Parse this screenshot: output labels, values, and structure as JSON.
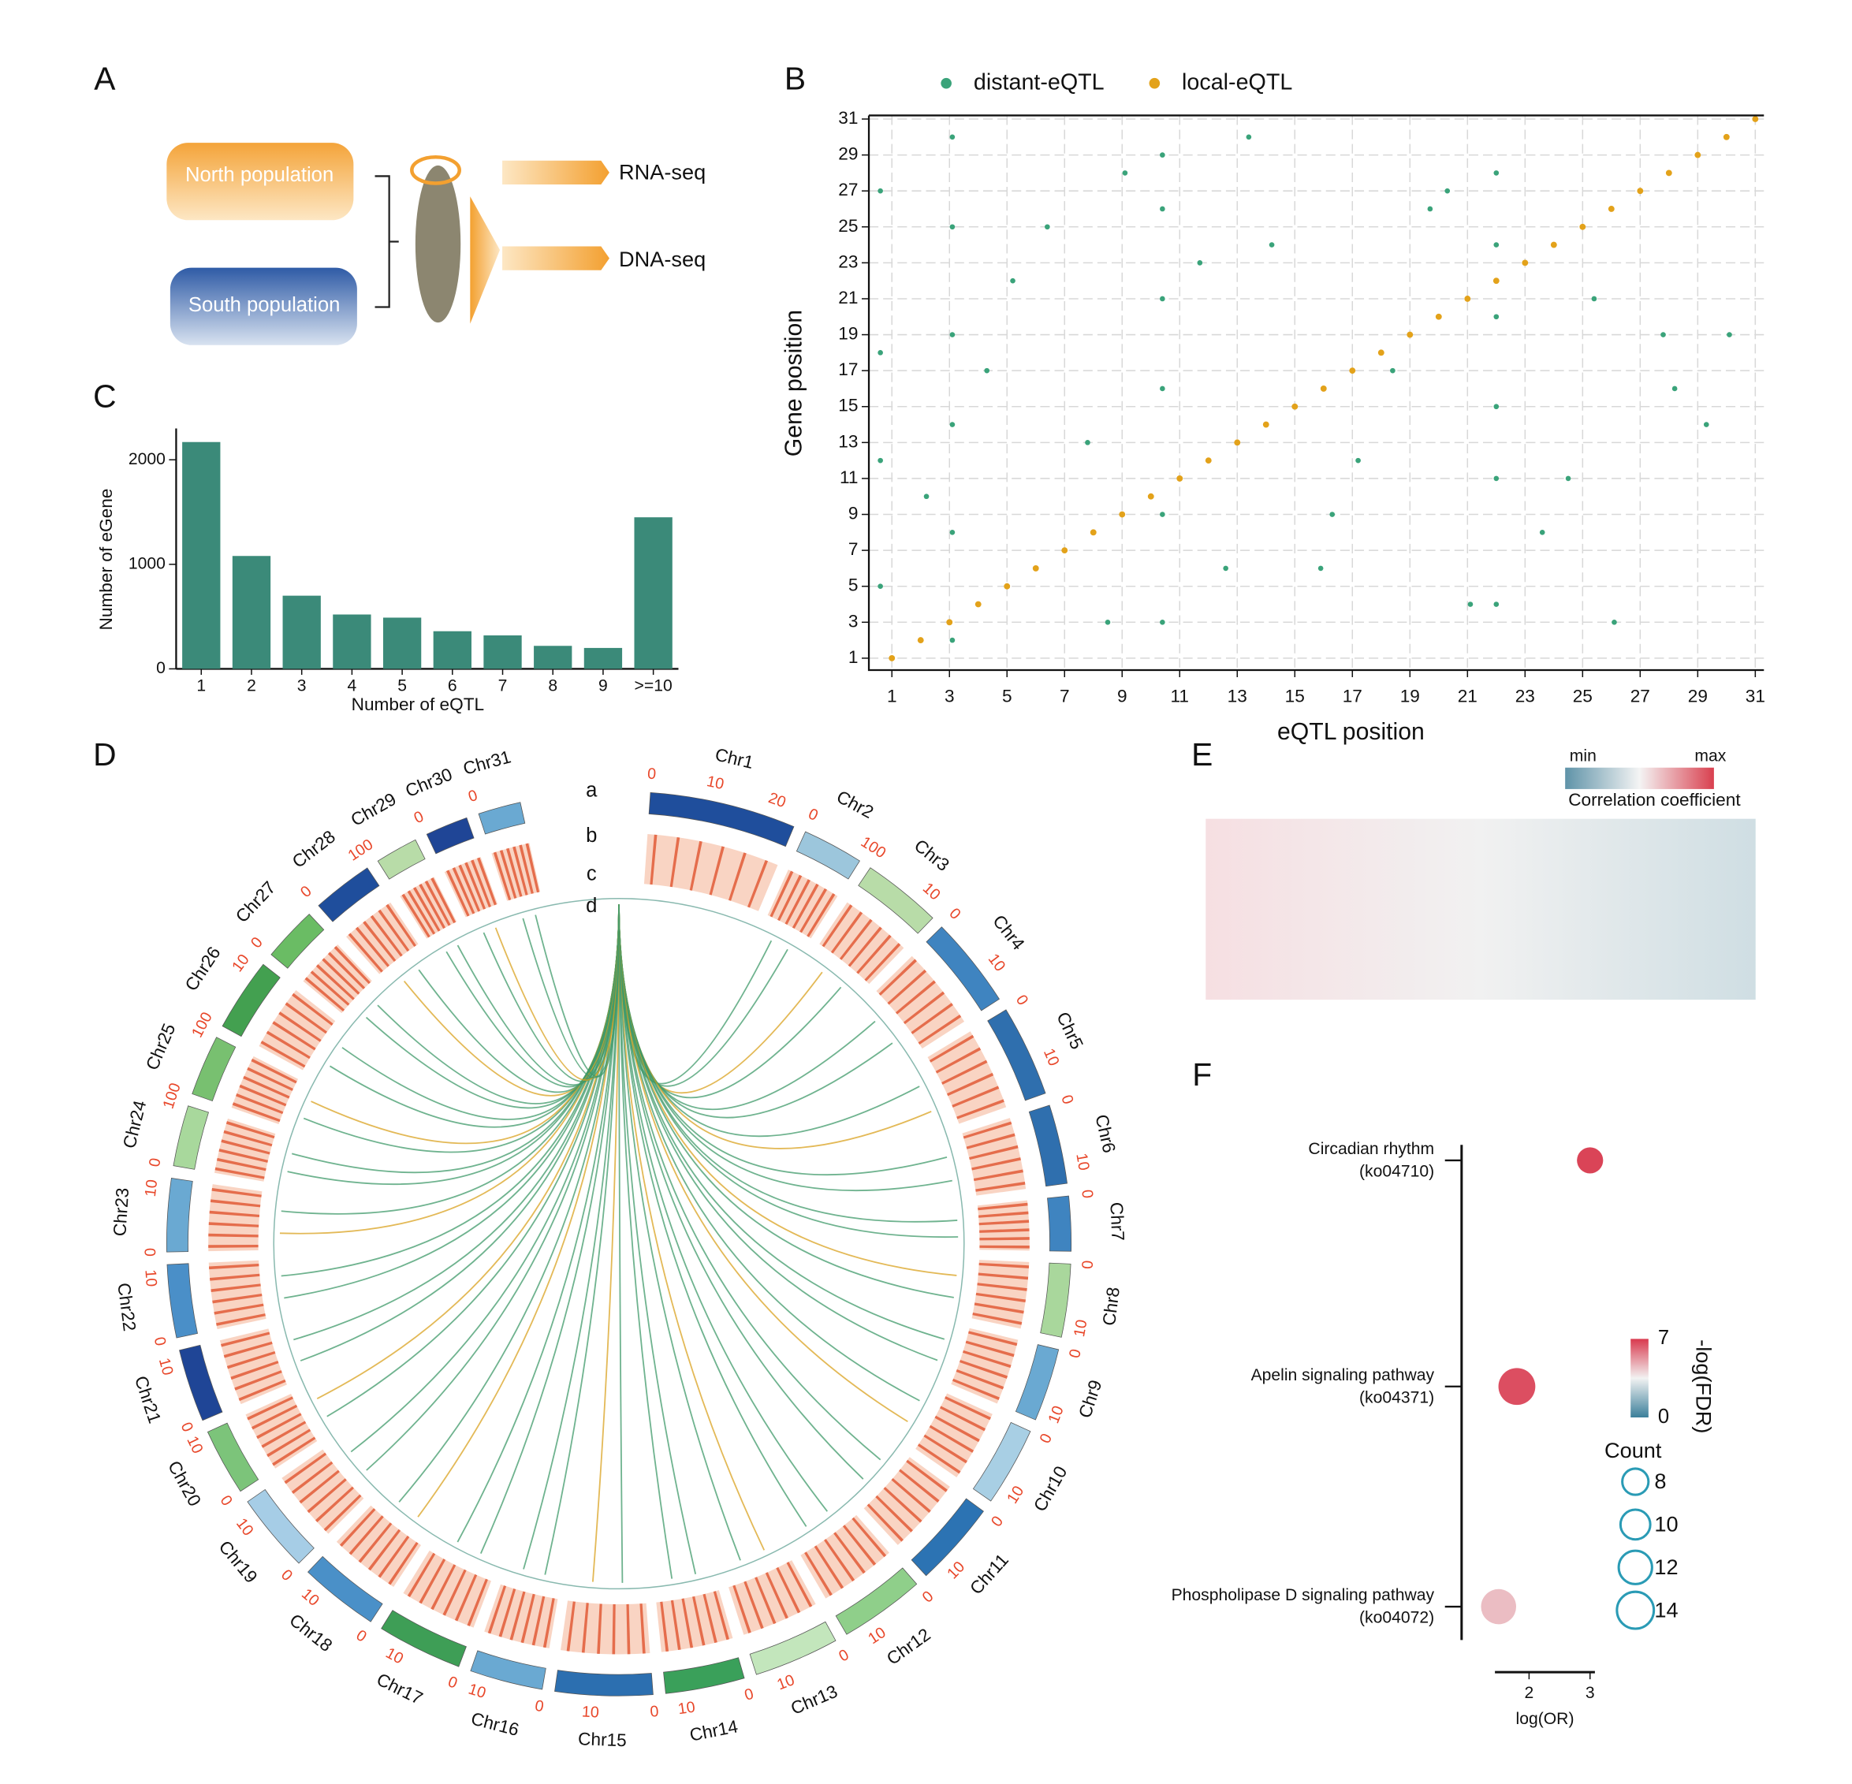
{
  "panel_labels": [
    "A",
    "B",
    "C",
    "D",
    "E",
    "F"
  ],
  "panel_a": {
    "populations": [
      "North population",
      "South population"
    ],
    "assays": [
      "RNA-seq",
      "DNA-seq"
    ]
  },
  "chart_data": [
    {
      "type": "bar",
      "xlabel": "Number of eQTL",
      "ylabel": "Number of eGene",
      "categories": [
        "1",
        "2",
        "3",
        "4",
        "5",
        "6",
        "7",
        "8",
        "9",
        ">=10"
      ],
      "values": [
        2170,
        1080,
        700,
        520,
        490,
        360,
        320,
        220,
        200,
        1450
      ],
      "color": "#3b8a79",
      "ylim": [
        0,
        2300
      ],
      "yticks": [
        0,
        1000,
        2000
      ]
    },
    {
      "type": "scatter",
      "xlabel": "eQTL position",
      "ylabel": "Gene position",
      "series": [
        {
          "name": "distant-eQTL",
          "color": "#3aa37a",
          "x": [
            3.1,
            3.1,
            3.1,
            3.1,
            3.1,
            3.1,
            10.4,
            10.4,
            10.4,
            10.4,
            10.4,
            10.4,
            22.0,
            22.0,
            22.0,
            22.0,
            22.0,
            22.0,
            0.6,
            0.6,
            0.6,
            0.6,
            5.2,
            7.8,
            9.1,
            12.6,
            14.2,
            16.3,
            18.4,
            19.7,
            24.5,
            26.1,
            27.8,
            29.3,
            4.3,
            6.4,
            8.5,
            13.4,
            15.9,
            17.2,
            20.3,
            23.6,
            25.4,
            28.2,
            2.2,
            11.7,
            21.1,
            30.1
          ],
          "y": [
            2,
            8,
            14,
            19,
            25,
            30,
            3,
            9,
            16,
            21,
            26,
            29,
            4,
            11,
            15,
            20,
            24,
            28,
            5,
            12,
            18,
            27,
            22,
            13,
            28,
            6,
            24,
            9,
            17,
            26,
            11,
            3,
            19,
            14,
            17,
            25,
            3,
            30,
            6,
            12,
            27,
            8,
            21,
            16,
            10,
            23,
            4,
            19
          ]
        },
        {
          "name": "local-eQTL",
          "color": "#e3a21a",
          "x": [
            1,
            2,
            3,
            4,
            5,
            6,
            7,
            8,
            9,
            10,
            11,
            12,
            13,
            14,
            15,
            16,
            17,
            18,
            19,
            20,
            21,
            22,
            23,
            24,
            25,
            26,
            27,
            28,
            29,
            30,
            31
          ],
          "y": [
            1,
            2,
            3,
            4,
            5,
            6,
            7,
            8,
            9,
            10,
            11,
            12,
            13,
            14,
            15,
            16,
            17,
            18,
            19,
            20,
            21,
            22,
            23,
            24,
            25,
            26,
            27,
            28,
            29,
            30,
            31
          ]
        }
      ],
      "xlim": [
        0.2,
        31.3
      ],
      "ylim": [
        0.34,
        31.2
      ],
      "xticks": [
        1,
        3,
        5,
        7,
        9,
        11,
        13,
        15,
        17,
        19,
        21,
        23,
        25,
        27,
        29,
        31
      ],
      "yticks": [
        1,
        3,
        5,
        7,
        9,
        11,
        13,
        15,
        17,
        19,
        21,
        23,
        25,
        27,
        29,
        31
      ],
      "grid": true
    },
    {
      "type": "chord",
      "chromosomes": [
        "Chr1",
        "Chr2",
        "Chr3",
        "Chr4",
        "Chr5",
        "Chr6",
        "Chr7",
        "Chr8",
        "Chr9",
        "Chr10",
        "Chr11",
        "Chr12",
        "Chr13",
        "Chr14",
        "Chr15",
        "Chr16",
        "Chr17",
        "Chr18",
        "Chr19",
        "Chr20",
        "Chr21",
        "Chr22",
        "Chr23",
        "Chr24",
        "Chr25",
        "Chr26",
        "Chr27",
        "Chr28",
        "Chr29",
        "Chr30",
        "Chr31"
      ],
      "sizes": [
        24,
        10,
        13,
        15,
        15,
        13,
        9,
        12,
        12,
        13,
        14,
        14,
        14,
        13,
        16,
        12,
        14,
        13,
        13,
        11,
        12,
        12,
        12,
        10,
        10,
        12,
        9,
        10,
        7,
        7,
        7
      ],
      "colors": [
        "#1f4e9c",
        "#9cc6dc",
        "#b8dca8",
        "#3f84c0",
        "#2f6fae",
        "#2f6fae",
        "#3f84c0",
        "#a9d79c",
        "#6aa9d2",
        "#a8cfe4",
        "#2c73b3",
        "#8fcf8a",
        "#c3e6bc",
        "#3aa05a",
        "#2c6fb0",
        "#6aa9d2",
        "#3e9e56",
        "#4a90c8",
        "#a6cde6",
        "#7cc47a",
        "#1f4596",
        "#4a8fc8",
        "#6aa9d2",
        "#a8d89c",
        "#78c070",
        "#43a050",
        "#6abc64",
        "#1f4e9c",
        "#b8dca8",
        "#1f4596",
        "#6aa9d2"
      ],
      "ticks": [
        0,
        10,
        20
      ],
      "track_labels": [
        "a",
        "b",
        "c",
        "d"
      ],
      "link_color": "#3f9a6a",
      "links": [
        2.3,
        2.7,
        3.3,
        3.7,
        4.3,
        4.7,
        5.3,
        5.7,
        6.3,
        6.7,
        7.3,
        7.7,
        8.3,
        8.7,
        9.3,
        9.7,
        10.3,
        10.7,
        11.3,
        11.7,
        12.3,
        12.7,
        13.3,
        13.7,
        14.3,
        14.7,
        15.3,
        15.7,
        16.3,
        16.7,
        17.3,
        17.7,
        18.3,
        18.7,
        19.3,
        19.7,
        20.3,
        20.7,
        21.3,
        21.7,
        22.3,
        22.7,
        23.3,
        23.7,
        24.3,
        24.7,
        25.3,
        25.7,
        26.3,
        26.7,
        27.3,
        27.7,
        28.3,
        28.7,
        29.3,
        29.7,
        30.3,
        30.7,
        31.3,
        31.7
      ]
    },
    {
      "type": "heatmap",
      "legend_title": "Correlation coefficient",
      "legend_labels": [
        "min",
        "max"
      ],
      "colors": [
        "#5f93a8",
        "#f4f4f4",
        "#d9404f"
      ]
    },
    {
      "type": "dot",
      "xlabel": "log(OR)",
      "categories": [
        [
          "Circadian rhythm",
          "(ko04710)"
        ],
        [
          "Apelin signaling pathway",
          "(ko04371)"
        ],
        [
          "Phospholipase D signaling pathway",
          "(ko04072)"
        ]
      ],
      "values": [
        3.0,
        1.8,
        1.5
      ],
      "color_values": [
        6.8,
        6.6,
        4.5
      ],
      "sizes": [
        8,
        14,
        13
      ],
      "xlim": [
        1.44,
        3.08
      ],
      "xticks": [
        2,
        3
      ],
      "colorbar": {
        "label": "-log(FDR)",
        "lim": [
          0,
          7
        ],
        "ticks": [
          0,
          7
        ],
        "colors": [
          "#3b7f9a",
          "#f2f2f2",
          "#d9394e"
        ]
      },
      "size_legend": {
        "title": "Count",
        "values": [
          8,
          10,
          12,
          14
        ],
        "color": "#2a9bb5"
      }
    }
  ]
}
